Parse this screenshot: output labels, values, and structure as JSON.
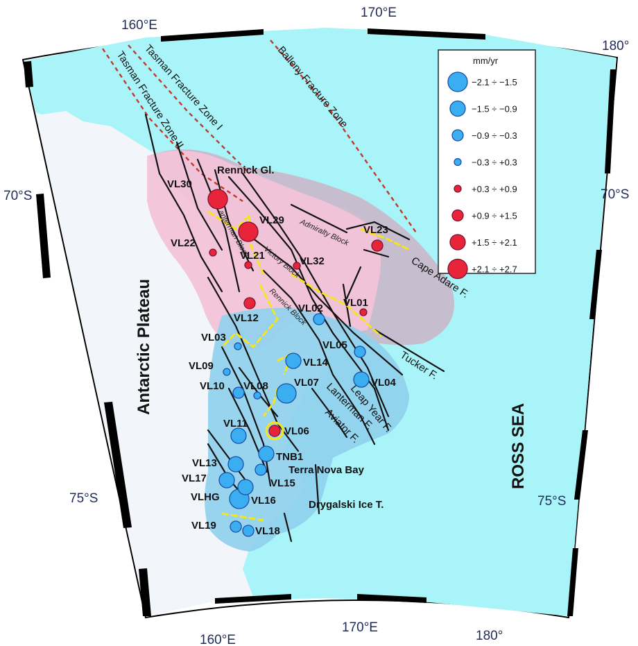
{
  "colors": {
    "sea": "#a8f4f8",
    "land": "#f2f5f9",
    "pink_zone": "#f2c3d8",
    "purple_zone": "#c9b7c9",
    "blue_zone": "#8fd0ec",
    "fault": "#111111",
    "fracture": "#c0392b",
    "boundary": "#f5e51b",
    "subsidence": "#3aaef0",
    "uplift": "#e8243a"
  },
  "frame": {
    "top_labels": [
      "160°E",
      "170°E",
      "180°"
    ],
    "bottom_labels": [
      "160°E",
      "170°E",
      "180°"
    ],
    "left_labels": [
      "70°S",
      "75°S"
    ],
    "right_labels": [
      "70°S",
      "75°S"
    ]
  },
  "regions": {
    "plateau": "Antarctic Plateau",
    "sea": "ROSS SEA",
    "terra_nova": "Terra Nova Bay",
    "drygalski": "Drygalski Ice T.",
    "rennick_gl": "Rennick Gl."
  },
  "fracture_zones": [
    "Tasman Fracture Zone II",
    "Tasman Fracture Zone I",
    "Balleny Fracture Zone"
  ],
  "faults": [
    "Cape Adare F.",
    "Tucker F.",
    "Leap Year F.",
    "Lanterman F.",
    "Aviator F."
  ],
  "blocks": [
    "Lanterman Block",
    "Victory Block",
    "Rennick Block",
    "Admiralty Block"
  ],
  "legend": {
    "title": "mm/yr",
    "classes": [
      {
        "label": "−2.1 ÷ −1.5",
        "type": "subsidence",
        "size": 6
      },
      {
        "label": "−1.5 ÷ −0.9",
        "type": "subsidence",
        "size": 5
      },
      {
        "label": "−0.9 ÷ −0.3",
        "type": "subsidence",
        "size": 4
      },
      {
        "label": "−0.3 ÷ +0.3",
        "type": "subsidence",
        "size": 3
      },
      {
        "label": "+0.3 ÷ +0.9",
        "type": "uplift",
        "size": 3
      },
      {
        "label": "+0.9 ÷ +1.5",
        "type": "uplift",
        "size": 4
      },
      {
        "label": "+1.5 ÷ +2.1",
        "type": "uplift",
        "size": 5
      },
      {
        "label": "+2.1 ÷ +2.7",
        "type": "uplift",
        "size": 6
      }
    ]
  },
  "stations": [
    {
      "name": "VL30",
      "type": "uplift",
      "size": 6
    },
    {
      "name": "VL29",
      "type": "uplift",
      "size": 6
    },
    {
      "name": "VL22",
      "type": "uplift",
      "size": 3
    },
    {
      "name": "VL21",
      "type": "uplift",
      "size": 3
    },
    {
      "name": "VL32",
      "type": "uplift",
      "size": 3
    },
    {
      "name": "VL23",
      "type": "uplift",
      "size": 4
    },
    {
      "name": "VL12",
      "type": "uplift",
      "size": 4
    },
    {
      "name": "VL02",
      "type": "subsidence",
      "size": 4
    },
    {
      "name": "VL01",
      "type": "uplift",
      "size": 3
    },
    {
      "name": "VL03",
      "type": "subsidence",
      "size": 3
    },
    {
      "name": "VL05",
      "type": "subsidence",
      "size": 4
    },
    {
      "name": "VL14",
      "type": "subsidence",
      "size": 5
    },
    {
      "name": "VL09",
      "type": "subsidence",
      "size": 3
    },
    {
      "name": "VL04",
      "type": "subsidence",
      "size": 5
    },
    {
      "name": "VL10",
      "type": "subsidence",
      "size": 4
    },
    {
      "name": "VL08",
      "type": "subsidence",
      "size": 3
    },
    {
      "name": "VL07",
      "type": "subsidence",
      "size": 6
    },
    {
      "name": "VL11",
      "type": "subsidence",
      "size": 5
    },
    {
      "name": "VL06",
      "type": "uplift",
      "size": 4
    },
    {
      "name": "TNB1",
      "type": "subsidence",
      "size": 5
    },
    {
      "name": "VL13",
      "type": "subsidence",
      "size": 5
    },
    {
      "name": "VL17",
      "type": "subsidence",
      "size": 5
    },
    {
      "name": "VL15",
      "type": "subsidence",
      "size": 4
    },
    {
      "name": "VLHG",
      "type": "subsidence",
      "size": 6
    },
    {
      "name": "VL16",
      "type": "subsidence",
      "size": 5
    },
    {
      "name": "VL19",
      "type": "subsidence",
      "size": 4
    },
    {
      "name": "VL18",
      "type": "subsidence",
      "size": 4
    }
  ]
}
